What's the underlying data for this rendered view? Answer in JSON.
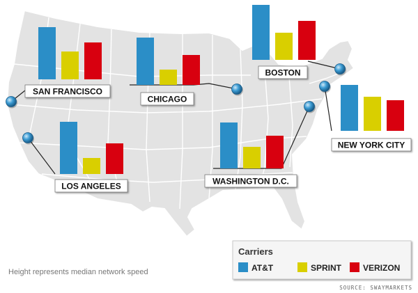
{
  "chart_data": {
    "type": "bar",
    "title": "",
    "xlabel": "",
    "ylabel": "",
    "map": "United States",
    "categories": [
      "AT&T",
      "SPRINT",
      "VERIZON"
    ],
    "series": [
      {
        "city": "SAN FRANCISCO",
        "values": [
          75,
          40,
          53
        ]
      },
      {
        "city": "CHICAGO",
        "values": [
          68,
          22,
          43
        ]
      },
      {
        "city": "BOSTON",
        "values": [
          79,
          39,
          56
        ]
      },
      {
        "city": "NEW YORK CITY",
        "values": [
          66,
          49,
          44
        ]
      },
      {
        "city": "LOS ANGELES",
        "values": [
          75,
          23,
          44
        ]
      },
      {
        "city": "WASHINGTON D.C.",
        "values": [
          66,
          31,
          47
        ]
      }
    ],
    "colors": {
      "AT&T": "#2b8ec7",
      "SPRINT": "#d9cf00",
      "VERIZON": "#d8000f"
    },
    "legend": {
      "title": "Carriers",
      "position": "bottom-right",
      "entries": [
        "AT&T",
        "SPRINT",
        "VERIZON"
      ]
    },
    "footnote": "Height represents median network speed",
    "source": "SOURCE: SWAYMARKETS"
  }
}
